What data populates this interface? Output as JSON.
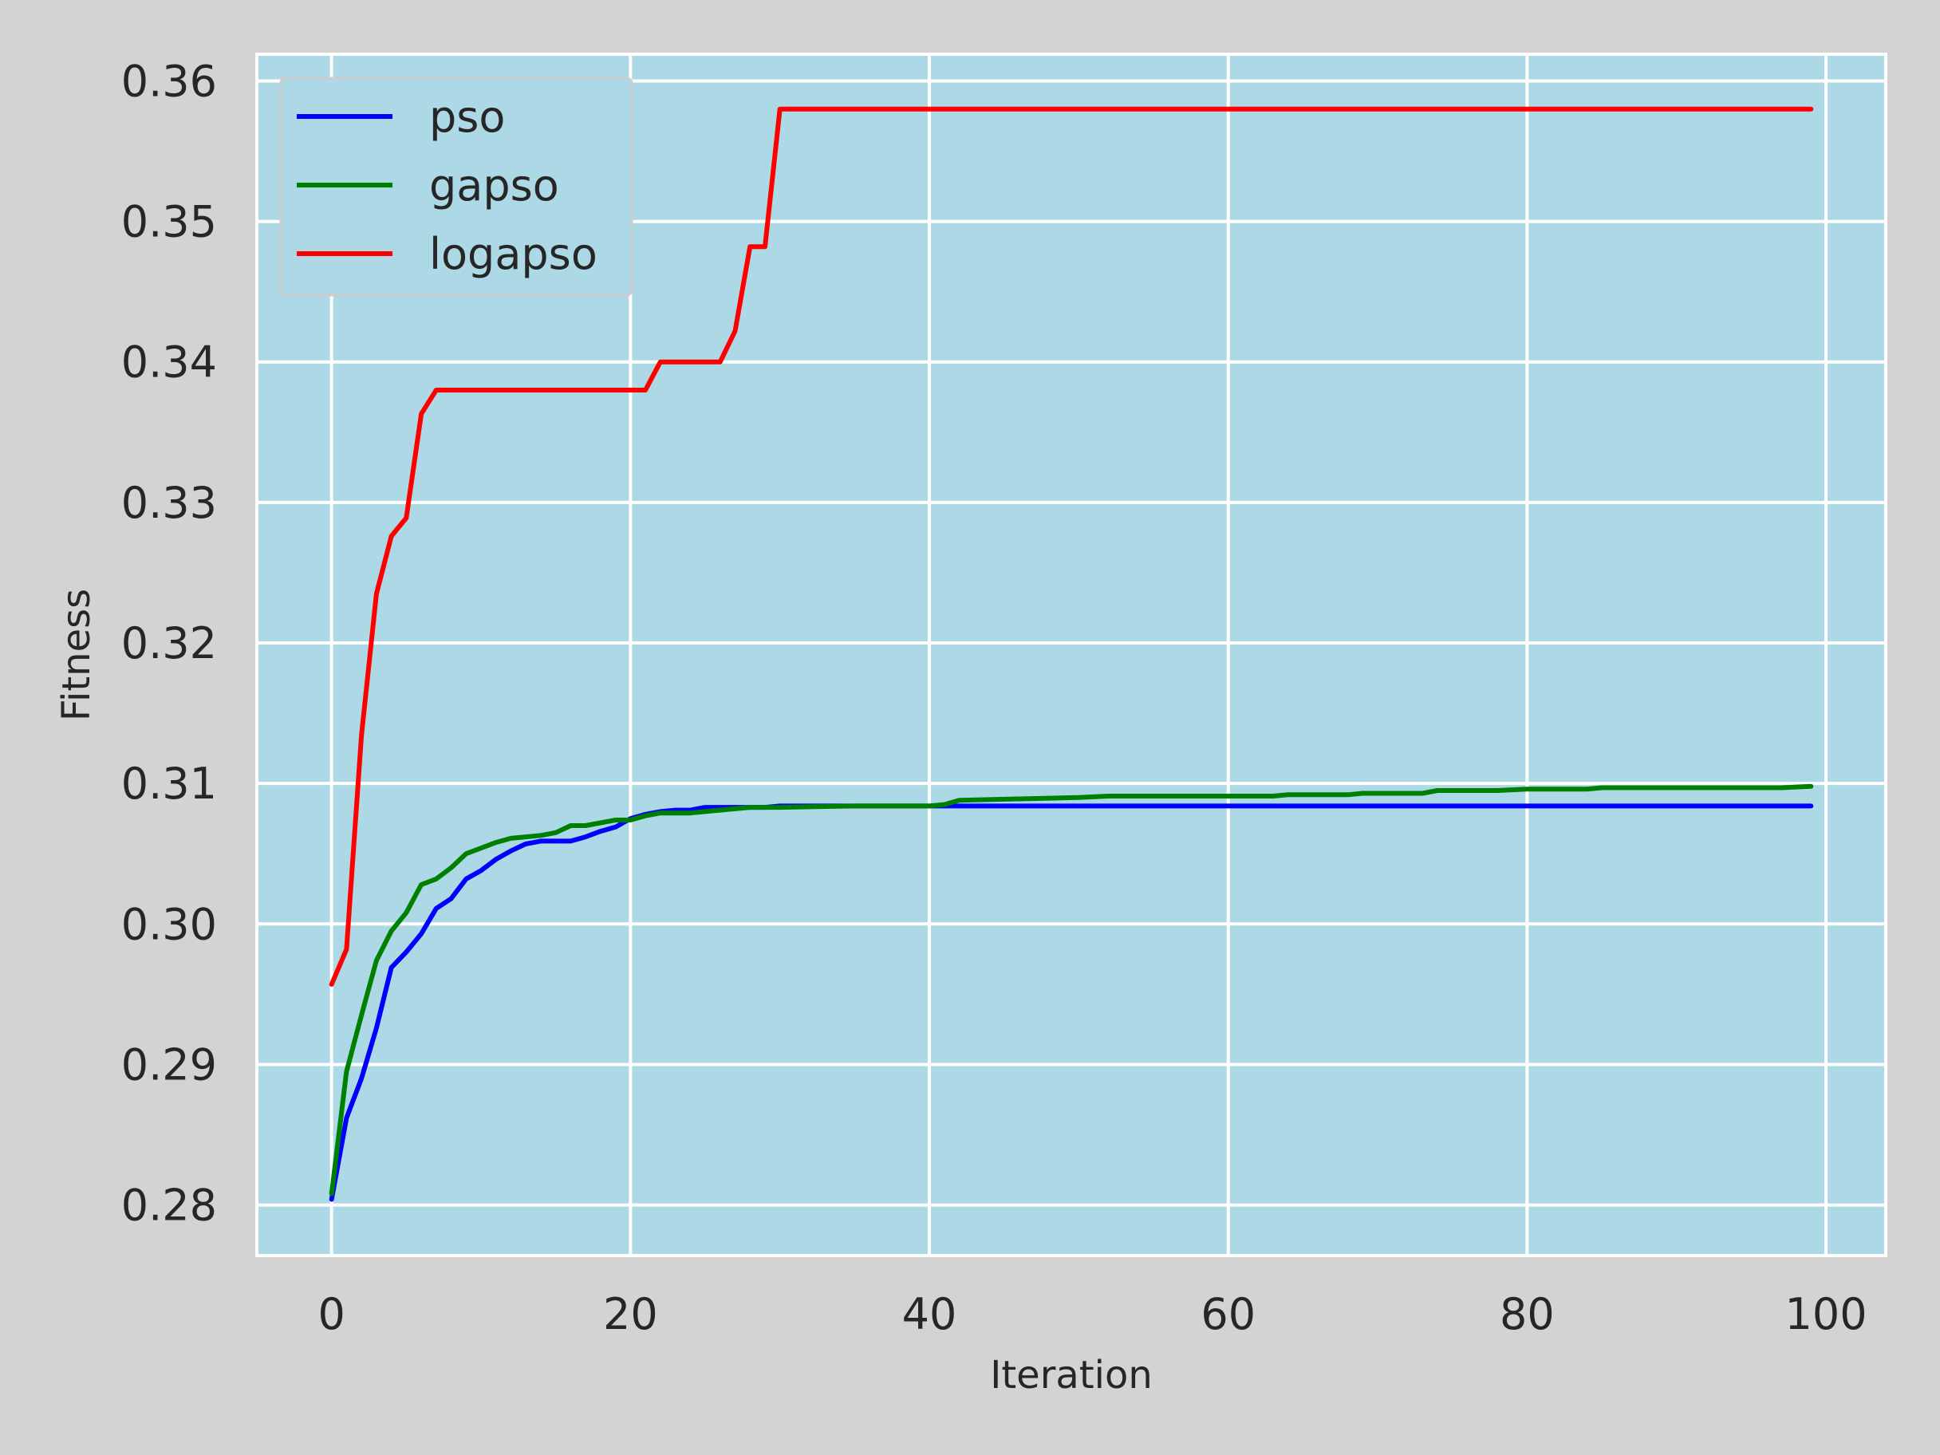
{
  "chart_data": {
    "type": "line",
    "title": "",
    "xlabel": "Iteration",
    "ylabel": "Fitness",
    "xlim": [
      -5,
      104
    ],
    "ylim": [
      0.2764,
      0.3619
    ],
    "xticks": [
      0,
      20,
      40,
      60,
      80,
      100
    ],
    "xtick_labels": [
      "0",
      "20",
      "40",
      "60",
      "80",
      "100"
    ],
    "yticks": [
      0.28,
      0.29,
      0.3,
      0.31,
      0.32,
      0.33,
      0.34,
      0.35,
      0.36
    ],
    "ytick_labels": [
      "0.28",
      "0.29",
      "0.30",
      "0.31",
      "0.32",
      "0.33",
      "0.34",
      "0.35",
      "0.36"
    ],
    "grid": true,
    "legend_position": "upper-left",
    "colors": {
      "page_background": "#d3d3d3",
      "plot_background": "#add8e6",
      "grid": "#ffffff"
    },
    "series": [
      {
        "name": "pso",
        "color": "#0000ff",
        "x": [
          0,
          1,
          2,
          3,
          4,
          5,
          6,
          7,
          8,
          9,
          10,
          11,
          12,
          13,
          14,
          15,
          16,
          17,
          18,
          19,
          20,
          21,
          22,
          23,
          24,
          25,
          26,
          27,
          28,
          29,
          30,
          35,
          40,
          45,
          50,
          60,
          70,
          80,
          90,
          99
        ],
        "values": [
          0.2804,
          0.2862,
          0.289,
          0.2926,
          0.2969,
          0.298,
          0.2993,
          0.3011,
          0.3018,
          0.3032,
          0.3038,
          0.3046,
          0.3052,
          0.3057,
          0.3059,
          0.3059,
          0.3059,
          0.3062,
          0.3066,
          0.3069,
          0.3075,
          0.3078,
          0.308,
          0.3081,
          0.3081,
          0.3083,
          0.3083,
          0.3083,
          0.3083,
          0.3083,
          0.3084,
          0.3084,
          0.3084,
          0.3084,
          0.3084,
          0.3084,
          0.3084,
          0.3084,
          0.3084,
          0.3084
        ]
      },
      {
        "name": "gapso",
        "color": "#008000",
        "x": [
          0,
          1,
          2,
          3,
          4,
          5,
          6,
          7,
          8,
          9,
          10,
          11,
          12,
          13,
          14,
          15,
          16,
          17,
          18,
          19,
          20,
          21,
          22,
          23,
          24,
          25,
          26,
          27,
          28,
          29,
          30,
          35,
          40,
          41,
          42,
          46,
          50,
          52,
          63,
          64,
          68,
          69,
          73,
          74,
          78,
          80,
          84,
          85,
          97,
          99
        ],
        "values": [
          0.2808,
          0.2895,
          0.2935,
          0.2974,
          0.2995,
          0.3008,
          0.3028,
          0.3032,
          0.304,
          0.305,
          0.3054,
          0.3058,
          0.3061,
          0.3062,
          0.3063,
          0.3065,
          0.307,
          0.307,
          0.3072,
          0.3074,
          0.3074,
          0.3077,
          0.3079,
          0.3079,
          0.3079,
          0.308,
          0.3081,
          0.3082,
          0.3083,
          0.3083,
          0.3083,
          0.3084,
          0.3084,
          0.3085,
          0.3088,
          0.3089,
          0.309,
          0.3091,
          0.3091,
          0.3092,
          0.3092,
          0.3093,
          0.3093,
          0.3095,
          0.3095,
          0.3096,
          0.3096,
          0.3097,
          0.3097,
          0.3098
        ]
      },
      {
        "name": "logapso",
        "color": "#ff0000",
        "x": [
          0,
          1,
          2,
          3,
          4,
          5,
          6,
          7,
          8,
          20,
          21,
          22,
          25,
          26,
          27,
          28,
          29,
          30,
          99
        ],
        "values": [
          0.2957,
          0.2982,
          0.3134,
          0.3235,
          0.3276,
          0.3289,
          0.3363,
          0.338,
          0.338,
          0.338,
          0.338,
          0.34,
          0.34,
          0.34,
          0.3422,
          0.3482,
          0.3482,
          0.358,
          0.358
        ]
      }
    ]
  }
}
